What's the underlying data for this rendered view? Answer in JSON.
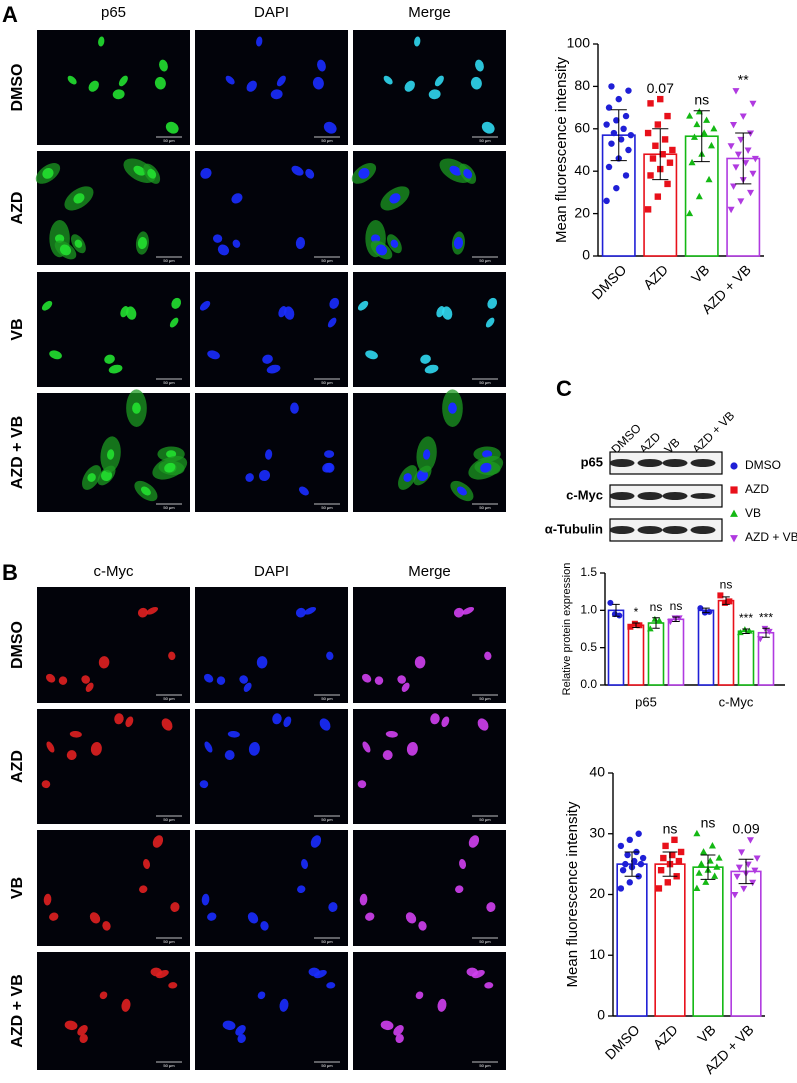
{
  "figure": {
    "panels": [
      {
        "label": "A",
        "columns": [
          "p65",
          "DAPI",
          "Merge"
        ],
        "rows": [
          "DMSO",
          "AZD",
          "VB",
          "AZD + VB"
        ]
      },
      {
        "label": "B",
        "columns": [
          "c-Myc",
          "DAPI",
          "Merge"
        ],
        "rows": [
          "DMSO",
          "AZD",
          "VB",
          "AZD + VB"
        ]
      }
    ],
    "scale_bar": "50 μm"
  },
  "blot": {
    "label": "C",
    "lanes": [
      "DMSO",
      "AZD",
      "VB",
      "AZD + VB"
    ],
    "rows": [
      "p65",
      "c-Myc",
      "α-Tubulin"
    ]
  },
  "chart_data": [
    {
      "type": "bar",
      "ylabel": "Mean fluorescence intensity",
      "categories": [
        "DMSO",
        "AZD",
        "VB",
        "AZD + VB"
      ],
      "values": [
        57,
        48,
        56.5,
        46
      ],
      "errors": [
        12,
        12,
        12,
        12
      ],
      "colors": [
        "#1f1fd6",
        "#e8101a",
        "#14b814",
        "#b03ae0"
      ],
      "markers": [
        "circle",
        "square",
        "triangle",
        "triangle-down"
      ],
      "annotations": [
        null,
        "0.07",
        "ns",
        "**"
      ],
      "points": [
        [
          26,
          32,
          38,
          42,
          46,
          50,
          53,
          55,
          57,
          58,
          60,
          62,
          64,
          66,
          70,
          74,
          78,
          80
        ],
        [
          22,
          28,
          34,
          38,
          41,
          44,
          46,
          48,
          50,
          52,
          55,
          58,
          62,
          66,
          72,
          74
        ],
        [
          20,
          28,
          36,
          44,
          48,
          52,
          56,
          58,
          60,
          62,
          64,
          66,
          68
        ],
        [
          22,
          26,
          30,
          33,
          36,
          39,
          42,
          44,
          46,
          48,
          50,
          52,
          55,
          58,
          62,
          66,
          72,
          78
        ]
      ],
      "ylim": [
        0,
        100
      ],
      "yticks": [
        0,
        20,
        40,
        60,
        80,
        100
      ]
    },
    {
      "type": "grouped_bar",
      "ylabel": "Relative protein expression",
      "categories": [
        "p65",
        "c-Myc"
      ],
      "series": [
        {
          "name": "DMSO",
          "color": "#1f1fd6",
          "marker": "circle",
          "values": [
            1.0,
            1.0
          ],
          "errors": [
            0.08,
            0.03
          ],
          "annotations": [
            null,
            null
          ],
          "points": [
            [
              1.1,
              0.95,
              0.93
            ],
            [
              1.03,
              0.97,
              0.98
            ]
          ]
        },
        {
          "name": "AZD",
          "color": "#e8101a",
          "marker": "square",
          "values": [
            0.8,
            1.13
          ],
          "errors": [
            0.03,
            0.05
          ],
          "annotations": [
            "*",
            "ns"
          ],
          "points": [
            [
              0.78,
              0.82,
              0.8
            ],
            [
              1.2,
              1.1,
              1.12
            ]
          ]
        },
        {
          "name": "VB",
          "color": "#14b814",
          "marker": "triangle",
          "values": [
            0.83,
            0.72
          ],
          "errors": [
            0.07,
            0.03
          ],
          "annotations": [
            "ns",
            "***"
          ],
          "points": [
            [
              0.75,
              0.88,
              0.86
            ],
            [
              0.7,
              0.74,
              0.72
            ]
          ]
        },
        {
          "name": "AZD + VB",
          "color": "#b03ae0",
          "marker": "triangle-down",
          "values": [
            0.88,
            0.7
          ],
          "errors": [
            0.03,
            0.06
          ],
          "annotations": [
            "ns",
            "***"
          ],
          "points": [
            [
              0.85,
              0.9,
              0.9
            ],
            [
              0.62,
              0.76,
              0.72
            ]
          ]
        }
      ],
      "ylim": [
        0,
        1.5
      ],
      "yticks": [
        {
          "value": 0,
          "label": "0.0"
        },
        {
          "value": 0.5,
          "label": "0.5"
        },
        {
          "value": 1,
          "label": "1.0"
        },
        {
          "value": 1.5,
          "label": "1.5"
        }
      ]
    },
    {
      "type": "bar",
      "ylabel": "Mean fluorescence intensity",
      "categories": [
        "DMSO",
        "AZD",
        "VB",
        "AZD + VB"
      ],
      "values": [
        25,
        25,
        24.5,
        23.8
      ],
      "errors": [
        2,
        2,
        2,
        2
      ],
      "colors": [
        "#1f1fd6",
        "#e8101a",
        "#14b814",
        "#b03ae0"
      ],
      "markers": [
        "circle",
        "square",
        "triangle",
        "triangle-down"
      ],
      "annotations": [
        null,
        "ns",
        "ns",
        "0.09"
      ],
      "points": [
        [
          21,
          22,
          23,
          24,
          24.5,
          25,
          25,
          25.5,
          26,
          26.5,
          27,
          28,
          29,
          30
        ],
        [
          21,
          22,
          23,
          24,
          25,
          25.5,
          26,
          26.5,
          27,
          28,
          29
        ],
        [
          21,
          22,
          23,
          23.5,
          24,
          24.5,
          25,
          25.5,
          26,
          27,
          28,
          30
        ],
        [
          20,
          21,
          22,
          23,
          23.5,
          24,
          24.5,
          25,
          26,
          27,
          29
        ]
      ],
      "ylim": [
        0,
        40
      ],
      "yticks": [
        0,
        10,
        20,
        30,
        40
      ]
    }
  ]
}
